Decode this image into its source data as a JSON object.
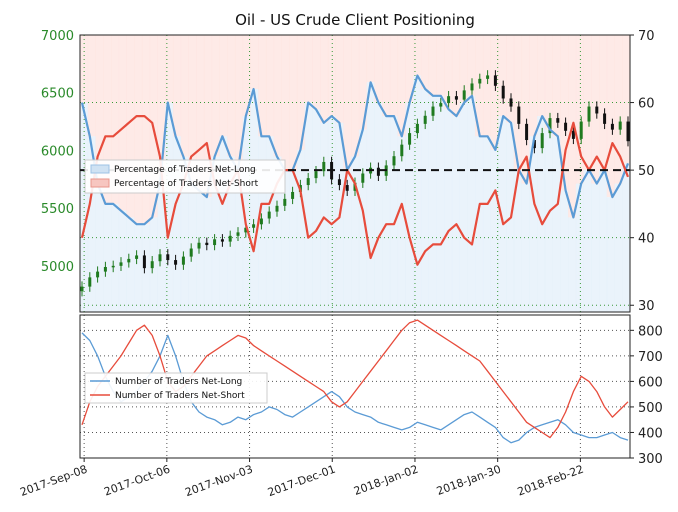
{
  "chart_data": [
    {
      "type": "line",
      "title": "Oil - US Crude Client Positioning",
      "x_tick_labels": [
        "2017-Sep-08",
        "2017-Oct-06",
        "2017-Nov-03",
        "2017-Dec-01",
        "2018-Jan-02",
        "2018-Jan-30",
        "2018-Feb-22"
      ],
      "left_axis": {
        "label": "",
        "ticks": [
          "5000",
          "5500",
          "6000",
          "6500",
          "7000"
        ],
        "ylim": [
          4600,
          7000
        ],
        "color": "#2a8a2a"
      },
      "right_axis": {
        "label": "",
        "ticks": [
          "30",
          "40",
          "50",
          "60",
          "70"
        ],
        "ylim": [
          29,
          70
        ]
      },
      "reference_line": {
        "value": 50,
        "style": "dashed"
      },
      "grid": true,
      "legend": {
        "placement": "center-left",
        "entries": [
          "Percentage of Traders Net-Long",
          "Percentage of Traders Net-Short"
        ]
      },
      "price_candles": {
        "series_name": "Oil Price",
        "close": [
          4820,
          4900,
          4950,
          4990,
          5000,
          5030,
          5060,
          5090,
          4980,
          5040,
          5100,
          5050,
          5010,
          5080,
          5150,
          5200,
          5180,
          5230,
          5210,
          5260,
          5290,
          5330,
          5360,
          5410,
          5470,
          5520,
          5580,
          5640,
          5700,
          5760,
          5820,
          5900,
          5750,
          5700,
          5650,
          5720,
          5800,
          5850,
          5780,
          5870,
          5950,
          6050,
          6150,
          6230,
          6300,
          6380,
          6410,
          6470,
          6440,
          6520,
          6580,
          6620,
          6650,
          6560,
          6450,
          6380,
          6230,
          6090,
          6020,
          6150,
          6280,
          6240,
          6170,
          6100,
          6250,
          6380,
          6320,
          6230,
          6180,
          6250,
          6080
        ]
      },
      "series": [
        {
          "name": "Percentage of Traders Net-Long",
          "color": "#5b9bd5",
          "values": [
            60,
            55,
            48,
            45,
            45,
            44,
            43,
            42,
            42,
            43,
            48,
            60,
            55,
            52,
            48,
            47,
            46,
            52,
            55,
            52,
            50,
            58,
            62,
            55,
            55,
            52,
            50,
            50,
            53,
            60,
            59,
            57,
            58,
            57,
            50,
            52,
            56,
            63,
            60,
            58,
            58,
            55,
            60,
            64,
            62,
            61,
            61,
            59,
            58,
            60,
            61,
            55,
            55,
            53,
            58,
            57,
            50,
            48,
            55,
            58,
            56,
            55,
            47,
            43,
            48,
            50,
            48,
            50,
            46,
            48,
            51
          ]
        },
        {
          "name": "Percentage of Traders Net-Short",
          "color": "#e74c3c",
          "values": [
            40,
            45,
            52,
            55,
            55,
            56,
            57,
            58,
            58,
            57,
            52,
            40,
            45,
            48,
            52,
            53,
            54,
            48,
            45,
            48,
            50,
            42,
            38,
            45,
            45,
            48,
            50,
            50,
            47,
            40,
            41,
            43,
            42,
            43,
            50,
            48,
            44,
            37,
            40,
            42,
            42,
            45,
            40,
            36,
            38,
            39,
            39,
            41,
            42,
            40,
            39,
            45,
            45,
            47,
            42,
            43,
            50,
            52,
            45,
            42,
            44,
            45,
            53,
            57,
            52,
            50,
            52,
            50,
            54,
            52,
            49
          ]
        }
      ]
    },
    {
      "type": "line",
      "title": "",
      "y_ticks": [
        "300",
        "400",
        "500",
        "600",
        "700",
        "800"
      ],
      "ylim": [
        300,
        860
      ],
      "grid": true,
      "legend": {
        "placement": "center-left",
        "entries": [
          "Number of Traders Net-Long",
          "Number of Traders Net-Short"
        ]
      },
      "series": [
        {
          "name": "Number of Traders Net-Long",
          "color": "#5b9bd5",
          "values": [
            790,
            760,
            700,
            620,
            560,
            520,
            540,
            560,
            600,
            640,
            700,
            780,
            700,
            600,
            520,
            480,
            460,
            450,
            430,
            440,
            460,
            450,
            470,
            480,
            500,
            490,
            470,
            460,
            480,
            500,
            520,
            540,
            560,
            540,
            500,
            480,
            470,
            460,
            440,
            430,
            420,
            410,
            420,
            440,
            430,
            420,
            410,
            430,
            450,
            470,
            480,
            460,
            440,
            420,
            380,
            360,
            370,
            400,
            420,
            430,
            440,
            450,
            430,
            400,
            390,
            380,
            380,
            390,
            400,
            380,
            370
          ]
        },
        {
          "name": "Number of Traders Net-Short",
          "color": "#e74c3c",
          "values": [
            430,
            520,
            580,
            620,
            660,
            700,
            750,
            800,
            820,
            780,
            700,
            600,
            560,
            580,
            620,
            660,
            700,
            720,
            740,
            760,
            780,
            770,
            740,
            720,
            700,
            680,
            660,
            640,
            620,
            600,
            580,
            560,
            520,
            500,
            520,
            560,
            600,
            640,
            680,
            720,
            760,
            800,
            830,
            840,
            820,
            800,
            780,
            760,
            740,
            720,
            700,
            680,
            640,
            600,
            560,
            520,
            480,
            440,
            420,
            400,
            380,
            420,
            480,
            560,
            620,
            600,
            560,
            500,
            460,
            490,
            520
          ]
        }
      ]
    }
  ]
}
